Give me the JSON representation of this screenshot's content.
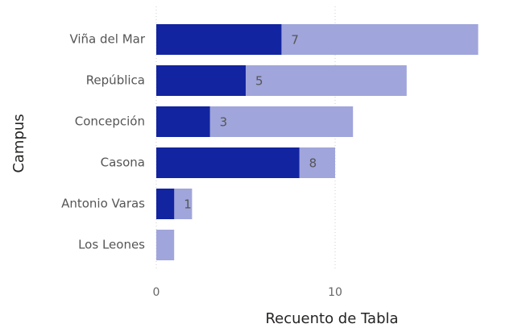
{
  "chart_data": {
    "type": "bar",
    "orientation": "horizontal",
    "categories": [
      "Viña del Mar",
      "República",
      "Concepción",
      "Casona",
      "Antonio Varas",
      "Los Leones"
    ],
    "series": [
      {
        "color": "#a0a5db",
        "values": [
          18,
          14,
          11,
          10,
          2,
          1
        ]
      },
      {
        "color": "#1224a0",
        "values": [
          7,
          5,
          3,
          8,
          1,
          null
        ]
      }
    ],
    "xlabel": "Recuento de Tabla",
    "ylabel": "Campus",
    "xlim": [
      0,
      20
    ],
    "xticks": [
      0,
      10
    ],
    "grid": true
  }
}
